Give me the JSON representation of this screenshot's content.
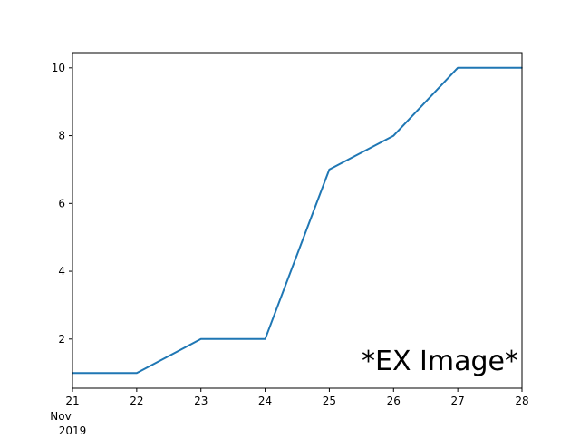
{
  "chart_data": {
    "type": "line",
    "x": [
      "2019-11-21",
      "2019-11-22",
      "2019-11-23",
      "2019-11-24",
      "2019-11-25",
      "2019-11-26",
      "2019-11-27",
      "2019-11-28"
    ],
    "series": [
      {
        "values": [
          1,
          1,
          2,
          2,
          7,
          8,
          10,
          10
        ],
        "color": "#1f77b4"
      }
    ],
    "x_tick_labels": [
      "21",
      "22",
      "23",
      "24",
      "25",
      "26",
      "27",
      "28"
    ],
    "x_tick_sublabels": [
      "Nov",
      "2019"
    ],
    "y_ticks": [
      2,
      4,
      6,
      8,
      10
    ],
    "ylim": [
      0.55,
      10.45
    ],
    "title": "",
    "xlabel": "",
    "ylabel": "",
    "grid": false,
    "watermark": "*EX Image*"
  }
}
